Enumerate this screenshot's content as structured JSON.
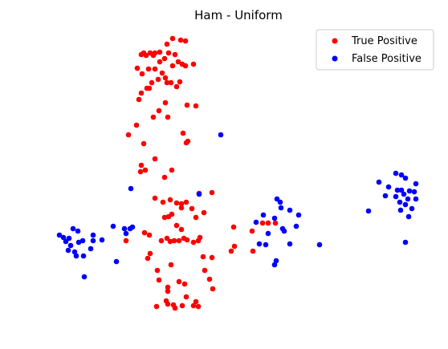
{
  "chart_data": {
    "type": "scatter",
    "title": "Ham - Uniform",
    "xlabel": "",
    "ylabel": "",
    "axes_visible": false,
    "grid": false,
    "legend_position": "top-right",
    "series": [
      {
        "name": "True Positive",
        "color": "#ff0000",
        "points": [
          [
            215,
            48
          ],
          [
            231,
            51
          ],
          [
            225,
            50
          ],
          [
            208,
            55
          ],
          [
            199,
            65
          ],
          [
            210,
            66
          ],
          [
            179,
            66
          ],
          [
            187,
            66
          ],
          [
            193,
            66
          ],
          [
            218,
            68
          ],
          [
            176,
            68
          ],
          [
            182,
            69
          ],
          [
            191,
            69
          ],
          [
            205,
            73
          ],
          [
            241,
            80
          ],
          [
            199,
            77
          ],
          [
            222,
            77
          ],
          [
            227,
            80
          ],
          [
            215,
            82
          ],
          [
            231,
            82
          ],
          [
            171,
            85
          ],
          [
            185,
            86
          ],
          [
            193,
            86
          ],
          [
            177,
            92
          ],
          [
            202,
            91
          ],
          [
            206,
            97
          ],
          [
            197,
            99
          ],
          [
            189,
            103
          ],
          [
            213,
            103
          ],
          [
            208,
            103
          ],
          [
            224,
            102
          ],
          [
            220,
            108
          ],
          [
            183,
            110
          ],
          [
            186,
            110
          ],
          [
            176,
            116
          ],
          [
            173,
            124
          ],
          [
            206,
            128
          ],
          [
            233,
            131
          ],
          [
            244,
            132
          ],
          [
            198,
            138
          ],
          [
            191,
            146
          ],
          [
            209,
            146
          ],
          [
            170,
            156
          ],
          [
            228,
            166
          ],
          [
            160,
            168
          ],
          [
            234,
            176
          ],
          [
            232,
            178
          ],
          [
            179,
            179
          ],
          [
            193,
            198
          ],
          [
            176,
            206
          ],
          [
            181,
            212
          ],
          [
            214,
            212
          ],
          [
            175,
            214
          ],
          [
            205,
            221
          ],
          [
            264,
            240
          ],
          [
            193,
            247
          ],
          [
            212,
            249
          ],
          [
            248,
            241
          ],
          [
            232,
            252
          ],
          [
            220,
            253
          ],
          [
            203,
            252
          ],
          [
            226,
            254
          ],
          [
            226,
            259
          ],
          [
            239,
            260
          ],
          [
            214,
            267
          ],
          [
            254,
            265
          ],
          [
            205,
            271
          ],
          [
            210,
            270
          ],
          [
            244,
            271
          ],
          [
            180,
            290
          ],
          [
            186,
            293
          ],
          [
            220,
            281
          ],
          [
            226,
            286
          ],
          [
            208,
            297
          ],
          [
            201,
            300
          ],
          [
            217,
            300
          ],
          [
            229,
            297
          ],
          [
            212,
            301
          ],
          [
            223,
            300
          ],
          [
            241,
            302
          ],
          [
            247,
            300
          ],
          [
            249,
            296
          ],
          [
            233,
            299
          ],
          [
            157,
            300
          ],
          [
            291,
            283
          ],
          [
            327,
            278
          ],
          [
            334,
            278
          ],
          [
            343,
            278
          ],
          [
            314,
            288
          ],
          [
            292,
            307
          ],
          [
            288,
            313
          ],
          [
            315,
            313
          ],
          [
            187,
            316
          ],
          [
            184,
            322
          ],
          [
            253,
            320
          ],
          [
            264,
            321
          ],
          [
            196,
            337
          ],
          [
            213,
            330
          ],
          [
            255,
            337
          ],
          [
            261,
            348
          ],
          [
            223,
            351
          ],
          [
            230,
            354
          ],
          [
            198,
            349
          ],
          [
            209,
            358
          ],
          [
            209,
            363
          ],
          [
            232,
            370
          ],
          [
            207,
            375
          ],
          [
            195,
            382
          ],
          [
            216,
            380
          ],
          [
            218,
            384
          ],
          [
            244,
            376
          ],
          [
            241,
            381
          ],
          [
            247,
            382
          ],
          [
            227,
            381
          ],
          [
            265,
            360
          ],
          [
            209,
            379
          ]
        ]
      },
      {
        "name": "False Positive",
        "color": "#0000ff",
        "points": [
          [
            493,
            216
          ],
          [
            500,
            218
          ],
          [
            505,
            222
          ],
          [
            472,
            227
          ],
          [
            518,
            229
          ],
          [
            484,
            233
          ],
          [
            495,
            237
          ],
          [
            500,
            237
          ],
          [
            510,
            238
          ],
          [
            516,
            239
          ],
          [
            503,
            242
          ],
          [
            493,
            245
          ],
          [
            480,
            244
          ],
          [
            508,
            248
          ],
          [
            518,
            248
          ],
          [
            498,
            252
          ],
          [
            505,
            255
          ],
          [
            513,
            260
          ],
          [
            499,
            262
          ],
          [
            459,
            263
          ],
          [
            509,
            270
          ],
          [
            505,
            302
          ],
          [
            248,
            242
          ],
          [
            275,
            168
          ],
          [
            163,
            235
          ],
          [
            345,
            248
          ],
          [
            349,
            252
          ],
          [
            350,
            259
          ],
          [
            361,
            262
          ],
          [
            372,
            268
          ],
          [
            328,
            268
          ],
          [
            342,
            272
          ],
          [
            319,
            277
          ],
          [
            352,
            285
          ],
          [
            369,
            282
          ],
          [
            334,
            291
          ],
          [
            354,
            288
          ],
          [
            361,
            304
          ],
          [
            398,
            305
          ],
          [
            323,
            304
          ],
          [
            331,
            305
          ],
          [
            344,
            325
          ],
          [
            342,
            330
          ],
          [
            141,
            282
          ],
          [
            155,
            285
          ],
          [
            162,
            285
          ],
          [
            165,
            283
          ],
          [
            157,
            291
          ],
          [
            91,
            285
          ],
          [
            97,
            288
          ],
          [
            74,
            293
          ],
          [
            79,
            296
          ],
          [
            86,
            297
          ],
          [
            116,
            293
          ],
          [
            127,
            299
          ],
          [
            82,
            301
          ],
          [
            98,
            302
          ],
          [
            103,
            300
          ],
          [
            88,
            306
          ],
          [
            113,
            310
          ],
          [
            93,
            314
          ],
          [
            104,
            319
          ],
          [
            95,
            319
          ],
          [
            145,
            326
          ],
          [
            105,
            345
          ],
          [
            116,
            300
          ],
          [
            85,
            312
          ]
        ]
      }
    ]
  }
}
